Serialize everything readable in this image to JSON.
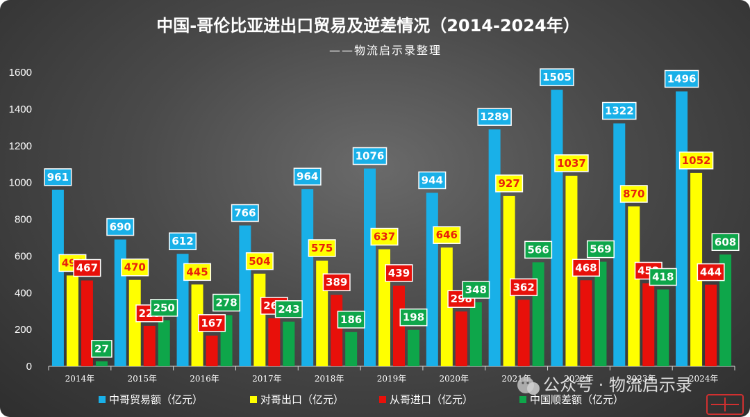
{
  "chart_data": {
    "type": "bar",
    "title": "中国-哥伦比亚进出口贸易及逆差情况（2014-2024年）",
    "subtitle": "——物流启示录整理",
    "categories": [
      "2014年",
      "2015年",
      "2016年",
      "2017年",
      "2018年",
      "2019年",
      "2020年",
      "2021年",
      "2022年",
      "2023年",
      "2024年"
    ],
    "series": [
      {
        "name": "中哥贸易额（亿元）",
        "color": "#19b0e8",
        "label_bg": "#19b0e8",
        "label_color": "#ffffff",
        "values": [
          961,
          690,
          612,
          766,
          964,
          1076,
          944,
          1289,
          1505,
          1322,
          1496
        ]
      },
      {
        "name": "对哥出口（亿元）",
        "color": "#ffff00",
        "label_bg": "#ffff00",
        "label_color": "#e8200c",
        "values": [
          494,
          470,
          445,
          504,
          575,
          637,
          646,
          927,
          1037,
          870,
          1052
        ]
      },
      {
        "name": "从哥进口（亿元）",
        "color": "#e8100a",
        "label_bg": "#e8100a",
        "label_color": "#ffffff",
        "values": [
          467,
          220,
          167,
          261,
          389,
          439,
          298,
          362,
          468,
          452,
          444
        ]
      },
      {
        "name": "中国顺差额（亿元）",
        "color": "#0ea64a",
        "label_bg": "#0ea64a",
        "label_color": "#ffffff",
        "values": [
          27,
          250,
          278,
          243,
          186,
          198,
          348,
          566,
          569,
          418,
          608
        ]
      }
    ],
    "yticks": [
      0,
      200,
      400,
      600,
      800,
      1000,
      1200,
      1400,
      1600
    ],
    "ylim": [
      0,
      1600
    ],
    "grid": false,
    "legend_position": "bottom-left"
  },
  "watermark": {
    "text": "公众号 · 物流启示录",
    "icon": "wechat-icon",
    "badge_icon": "stamp-icon"
  }
}
